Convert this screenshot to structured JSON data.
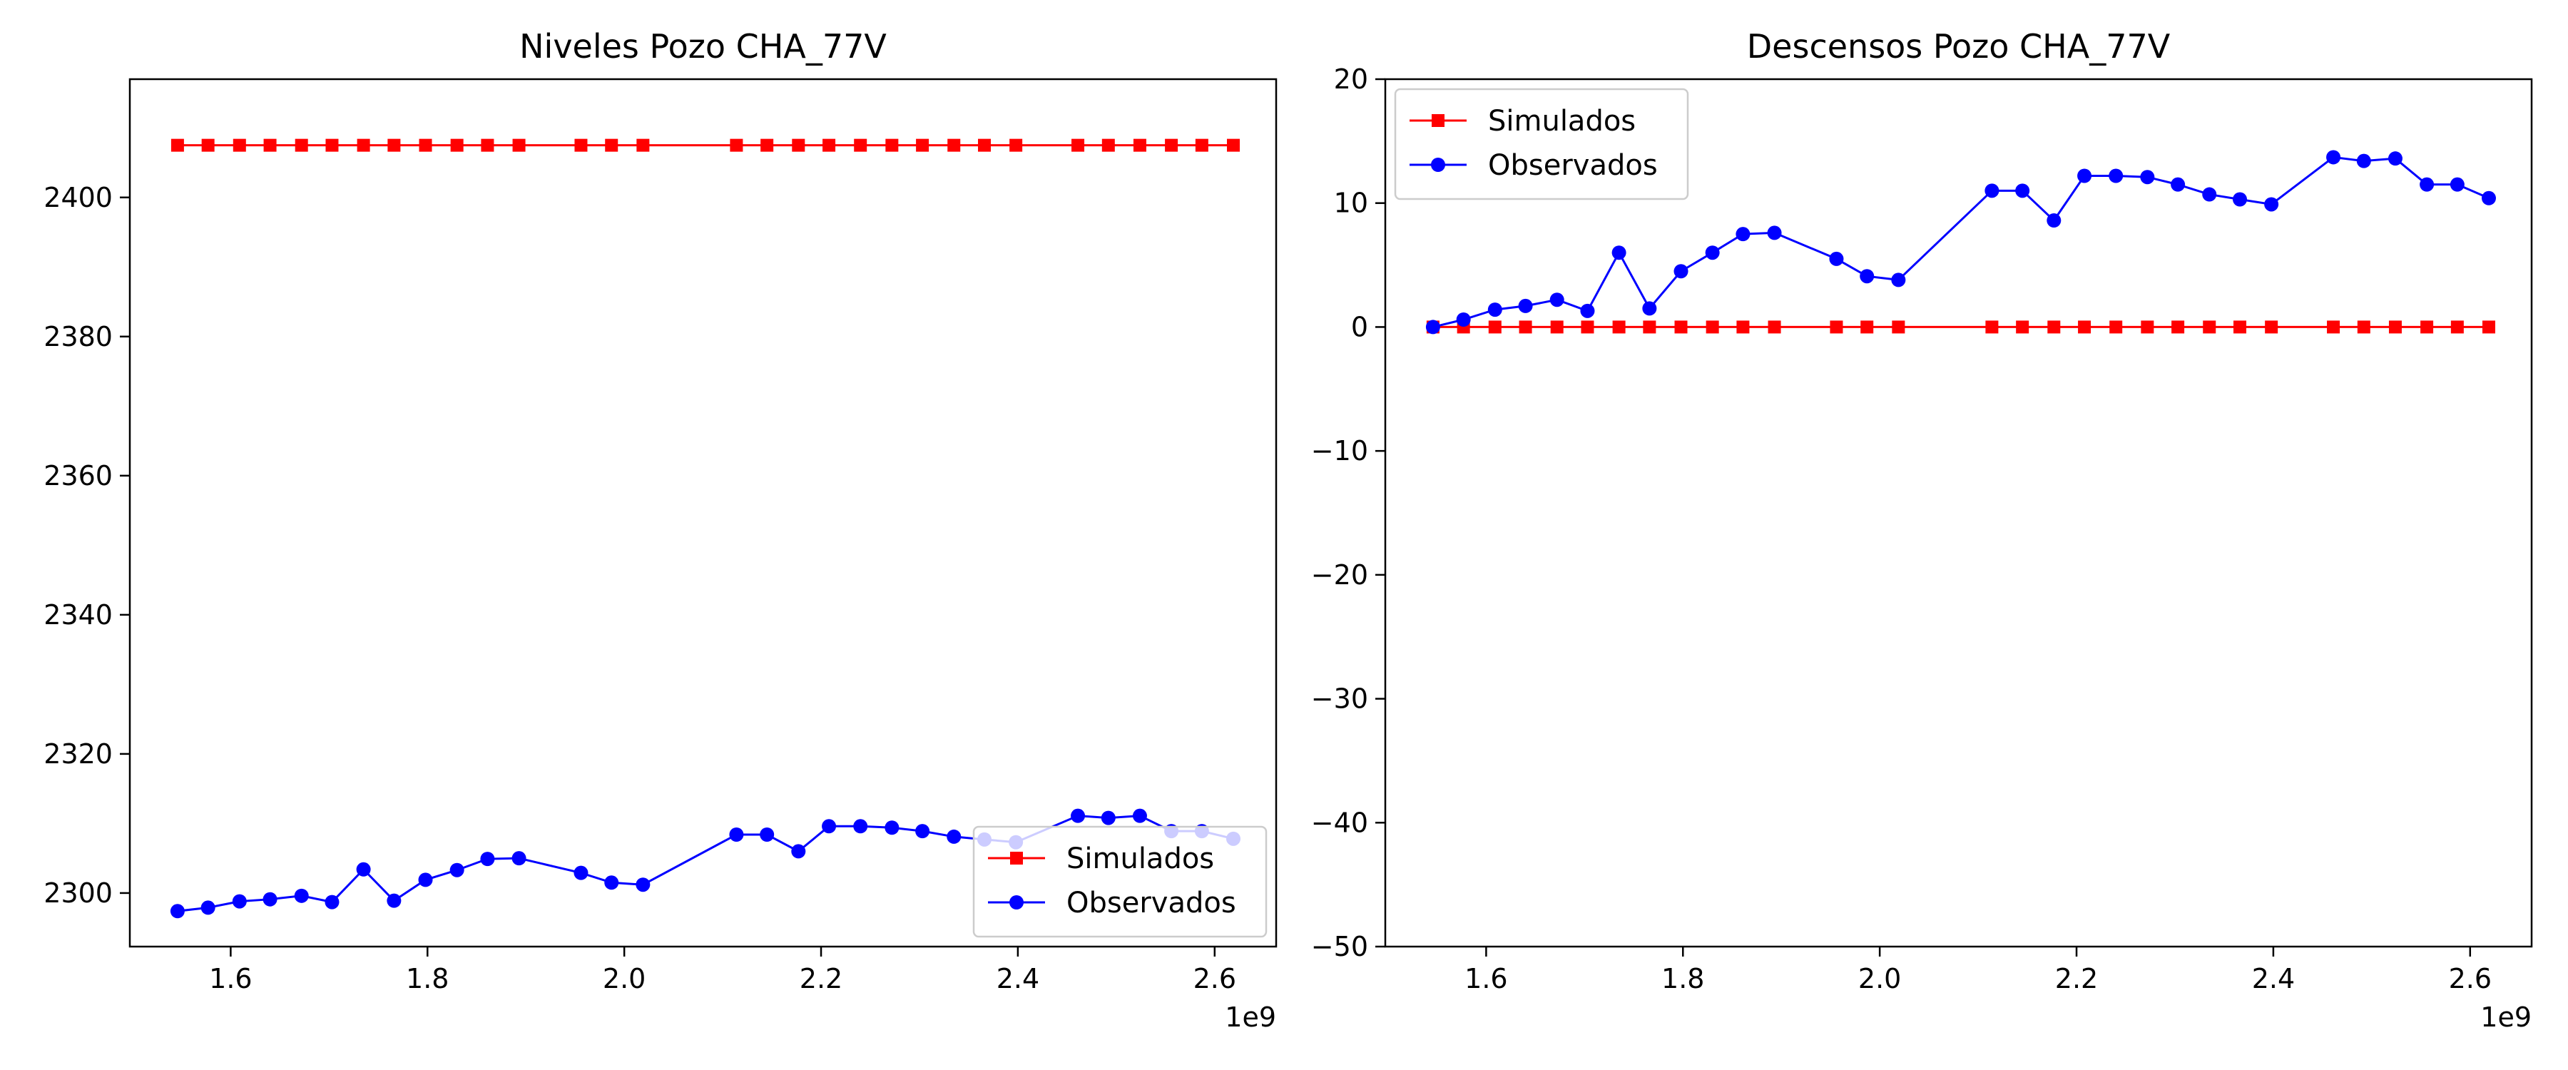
{
  "chart_data": [
    {
      "type": "line",
      "title": "Niveles Pozo CHA_77V",
      "xlabel": "",
      "ylabel": "",
      "x_offset_label": "1e9",
      "xlim": [
        1.4975,
        2.6625
      ],
      "ylim": [
        2292.3,
        2417
      ],
      "x_ticks": [
        1.6,
        1.8,
        2.0,
        2.2,
        2.4,
        2.6
      ],
      "x_tick_labels": [
        "1.6",
        "1.8",
        "2.0",
        "2.2",
        "2.4",
        "2.6"
      ],
      "y_ticks": [
        2300,
        2320,
        2340,
        2360,
        2380,
        2400
      ],
      "y_tick_labels": [
        "2300",
        "2320",
        "2340",
        "2360",
        "2380",
        "2400"
      ],
      "grid": false,
      "legend_position": "lower-right",
      "series": [
        {
          "name": "Simulados",
          "color": "#ff0000",
          "marker": "square",
          "x": [
            1.546,
            1.577,
            1.609,
            1.64,
            1.672,
            1.703,
            1.735,
            1.766,
            1.798,
            1.83,
            1.861,
            1.893,
            1.956,
            1.987,
            2.019,
            2.114,
            2.145,
            2.177,
            2.208,
            2.24,
            2.272,
            2.303,
            2.335,
            2.366,
            2.398,
            2.461,
            2.492,
            2.524,
            2.556,
            2.587,
            2.619
          ],
          "y": [
            2407.5,
            2407.5,
            2407.5,
            2407.5,
            2407.5,
            2407.5,
            2407.5,
            2407.5,
            2407.5,
            2407.5,
            2407.5,
            2407.5,
            2407.5,
            2407.5,
            2407.5,
            2407.5,
            2407.5,
            2407.5,
            2407.5,
            2407.5,
            2407.5,
            2407.5,
            2407.5,
            2407.5,
            2407.5,
            2407.5,
            2407.5,
            2407.5,
            2407.5,
            2407.5,
            2407.5
          ]
        },
        {
          "name": "Observados",
          "color": "#0000ff",
          "marker": "circle",
          "x": [
            1.546,
            1.577,
            1.609,
            1.64,
            1.672,
            1.703,
            1.735,
            1.766,
            1.798,
            1.83,
            1.861,
            1.893,
            1.956,
            1.987,
            2.019,
            2.114,
            2.145,
            2.177,
            2.208,
            2.24,
            2.272,
            2.303,
            2.335,
            2.366,
            2.398,
            2.461,
            2.492,
            2.524,
            2.556,
            2.587,
            2.619
          ],
          "y": [
            2297.4,
            2297.9,
            2298.8,
            2299.1,
            2299.6,
            2298.7,
            2303.4,
            2298.9,
            2301.9,
            2303.3,
            2304.9,
            2305.0,
            2302.9,
            2301.5,
            2301.2,
            2308.4,
            2308.4,
            2306.0,
            2309.6,
            2309.6,
            2309.4,
            2308.9,
            2308.1,
            2307.7,
            2307.3,
            2311.1,
            2310.8,
            2311.1,
            2308.9,
            2308.9,
            2307.8
          ]
        }
      ]
    },
    {
      "type": "line",
      "title": "Descensos Pozo CHA_77V",
      "xlabel": "",
      "ylabel": "",
      "x_offset_label": "1e9",
      "xlim": [
        1.4975,
        2.6625
      ],
      "ylim": [
        -50,
        20
      ],
      "x_ticks": [
        1.6,
        1.8,
        2.0,
        2.2,
        2.4,
        2.6
      ],
      "x_tick_labels": [
        "1.6",
        "1.8",
        "2.0",
        "2.2",
        "2.4",
        "2.6"
      ],
      "y_ticks": [
        -50,
        -40,
        -30,
        -20,
        -10,
        0,
        10,
        20
      ],
      "y_tick_labels": [
        "−50",
        "−40",
        "−30",
        "−20",
        "−10",
        "0",
        "10",
        "20"
      ],
      "grid": false,
      "legend_position": "upper-left",
      "series": [
        {
          "name": "Simulados",
          "color": "#ff0000",
          "marker": "square",
          "x": [
            1.546,
            1.577,
            1.609,
            1.64,
            1.672,
            1.703,
            1.735,
            1.766,
            1.798,
            1.83,
            1.861,
            1.893,
            1.956,
            1.987,
            2.019,
            2.114,
            2.145,
            2.177,
            2.208,
            2.24,
            2.272,
            2.303,
            2.335,
            2.366,
            2.398,
            2.461,
            2.492,
            2.524,
            2.556,
            2.587,
            2.619
          ],
          "y": [
            0,
            0,
            0,
            0,
            0,
            0,
            0,
            0,
            0,
            0,
            0,
            0,
            0,
            0,
            0,
            0,
            0,
            0,
            0,
            0,
            0,
            0,
            0,
            0,
            0,
            0,
            0,
            0,
            0,
            0,
            0
          ]
        },
        {
          "name": "Observados",
          "color": "#0000ff",
          "marker": "circle",
          "x": [
            1.546,
            1.577,
            1.609,
            1.64,
            1.672,
            1.703,
            1.735,
            1.766,
            1.798,
            1.83,
            1.861,
            1.893,
            1.956,
            1.987,
            2.019,
            2.114,
            2.145,
            2.177,
            2.208,
            2.24,
            2.272,
            2.303,
            2.335,
            2.366,
            2.398,
            2.461,
            2.492,
            2.524,
            2.556,
            2.587,
            2.619
          ],
          "y": [
            0.0,
            0.6,
            1.4,
            1.7,
            2.2,
            1.3,
            6.0,
            1.5,
            4.5,
            6.0,
            7.5,
            7.6,
            5.5,
            4.1,
            3.8,
            11.0,
            11.0,
            8.6,
            12.2,
            12.2,
            12.1,
            11.5,
            10.7,
            10.3,
            9.9,
            13.7,
            13.4,
            13.6,
            11.5,
            11.5,
            10.4
          ]
        }
      ]
    }
  ]
}
